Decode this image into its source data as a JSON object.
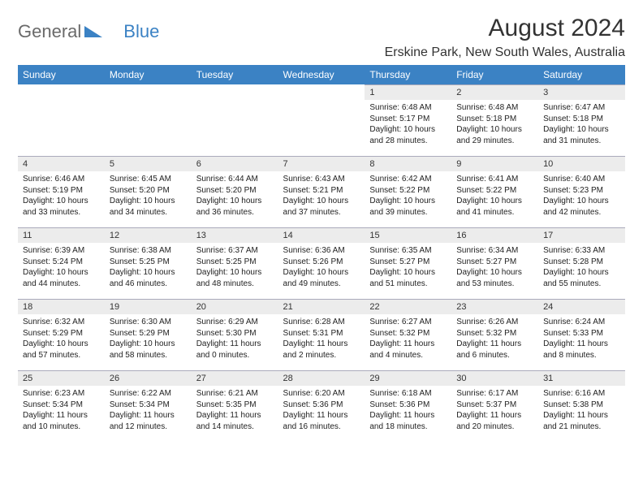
{
  "logo": {
    "word1": "General",
    "word2": "Blue",
    "color1": "#6a6a6a",
    "color2": "#3b82c4"
  },
  "title": "August 2024",
  "location": "Erskine Park, New South Wales, Australia",
  "header_bg": "#3b82c4",
  "header_fg": "#ffffff",
  "daynum_bg": "#ececec",
  "days": [
    "Sunday",
    "Monday",
    "Tuesday",
    "Wednesday",
    "Thursday",
    "Friday",
    "Saturday"
  ],
  "weeks": [
    [
      null,
      null,
      null,
      null,
      {
        "n": "1",
        "sr": "6:48 AM",
        "ss": "5:17 PM",
        "dl": "10 hours and 28 minutes."
      },
      {
        "n": "2",
        "sr": "6:48 AM",
        "ss": "5:18 PM",
        "dl": "10 hours and 29 minutes."
      },
      {
        "n": "3",
        "sr": "6:47 AM",
        "ss": "5:18 PM",
        "dl": "10 hours and 31 minutes."
      }
    ],
    [
      {
        "n": "4",
        "sr": "6:46 AM",
        "ss": "5:19 PM",
        "dl": "10 hours and 33 minutes."
      },
      {
        "n": "5",
        "sr": "6:45 AM",
        "ss": "5:20 PM",
        "dl": "10 hours and 34 minutes."
      },
      {
        "n": "6",
        "sr": "6:44 AM",
        "ss": "5:20 PM",
        "dl": "10 hours and 36 minutes."
      },
      {
        "n": "7",
        "sr": "6:43 AM",
        "ss": "5:21 PM",
        "dl": "10 hours and 37 minutes."
      },
      {
        "n": "8",
        "sr": "6:42 AM",
        "ss": "5:22 PM",
        "dl": "10 hours and 39 minutes."
      },
      {
        "n": "9",
        "sr": "6:41 AM",
        "ss": "5:22 PM",
        "dl": "10 hours and 41 minutes."
      },
      {
        "n": "10",
        "sr": "6:40 AM",
        "ss": "5:23 PM",
        "dl": "10 hours and 42 minutes."
      }
    ],
    [
      {
        "n": "11",
        "sr": "6:39 AM",
        "ss": "5:24 PM",
        "dl": "10 hours and 44 minutes."
      },
      {
        "n": "12",
        "sr": "6:38 AM",
        "ss": "5:25 PM",
        "dl": "10 hours and 46 minutes."
      },
      {
        "n": "13",
        "sr": "6:37 AM",
        "ss": "5:25 PM",
        "dl": "10 hours and 48 minutes."
      },
      {
        "n": "14",
        "sr": "6:36 AM",
        "ss": "5:26 PM",
        "dl": "10 hours and 49 minutes."
      },
      {
        "n": "15",
        "sr": "6:35 AM",
        "ss": "5:27 PM",
        "dl": "10 hours and 51 minutes."
      },
      {
        "n": "16",
        "sr": "6:34 AM",
        "ss": "5:27 PM",
        "dl": "10 hours and 53 minutes."
      },
      {
        "n": "17",
        "sr": "6:33 AM",
        "ss": "5:28 PM",
        "dl": "10 hours and 55 minutes."
      }
    ],
    [
      {
        "n": "18",
        "sr": "6:32 AM",
        "ss": "5:29 PM",
        "dl": "10 hours and 57 minutes."
      },
      {
        "n": "19",
        "sr": "6:30 AM",
        "ss": "5:29 PM",
        "dl": "10 hours and 58 minutes."
      },
      {
        "n": "20",
        "sr": "6:29 AM",
        "ss": "5:30 PM",
        "dl": "11 hours and 0 minutes."
      },
      {
        "n": "21",
        "sr": "6:28 AM",
        "ss": "5:31 PM",
        "dl": "11 hours and 2 minutes."
      },
      {
        "n": "22",
        "sr": "6:27 AM",
        "ss": "5:32 PM",
        "dl": "11 hours and 4 minutes."
      },
      {
        "n": "23",
        "sr": "6:26 AM",
        "ss": "5:32 PM",
        "dl": "11 hours and 6 minutes."
      },
      {
        "n": "24",
        "sr": "6:24 AM",
        "ss": "5:33 PM",
        "dl": "11 hours and 8 minutes."
      }
    ],
    [
      {
        "n": "25",
        "sr": "6:23 AM",
        "ss": "5:34 PM",
        "dl": "11 hours and 10 minutes."
      },
      {
        "n": "26",
        "sr": "6:22 AM",
        "ss": "5:34 PM",
        "dl": "11 hours and 12 minutes."
      },
      {
        "n": "27",
        "sr": "6:21 AM",
        "ss": "5:35 PM",
        "dl": "11 hours and 14 minutes."
      },
      {
        "n": "28",
        "sr": "6:20 AM",
        "ss": "5:36 PM",
        "dl": "11 hours and 16 minutes."
      },
      {
        "n": "29",
        "sr": "6:18 AM",
        "ss": "5:36 PM",
        "dl": "11 hours and 18 minutes."
      },
      {
        "n": "30",
        "sr": "6:17 AM",
        "ss": "5:37 PM",
        "dl": "11 hours and 20 minutes."
      },
      {
        "n": "31",
        "sr": "6:16 AM",
        "ss": "5:38 PM",
        "dl": "11 hours and 21 minutes."
      }
    ]
  ],
  "labels": {
    "sunrise": "Sunrise: ",
    "sunset": "Sunset: ",
    "daylight": "Daylight: "
  }
}
